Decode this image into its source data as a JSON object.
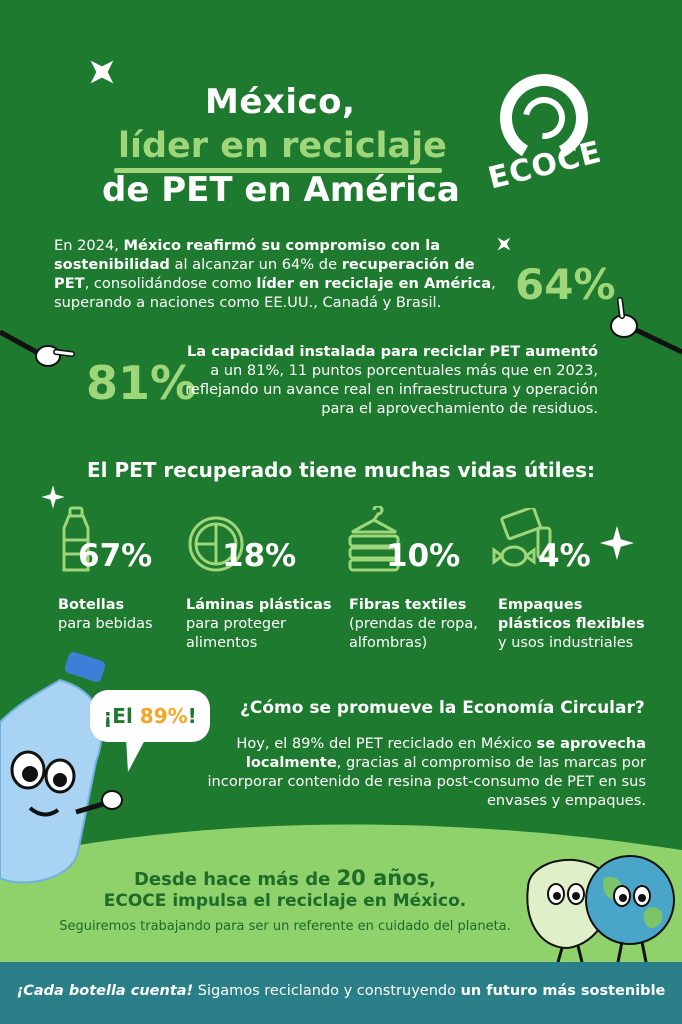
{
  "header": {
    "title_line1": "México,",
    "title_line2": "líder en reciclaje",
    "title_line3": "de PET en América",
    "logo_text": "ECOCE"
  },
  "intro": {
    "p1": "En 2024, ",
    "b1": "México reafirmó su compromiso con la sostenibilidad",
    "p2": " al alcanzar un 64% de ",
    "b2": "recuperación de PET",
    "p3": ", consolidándose como ",
    "b3": "líder en reciclaje en América",
    "p4": ", superando a naciones como EE.UU., Canadá y Brasil.",
    "stat": "64%"
  },
  "capacity": {
    "stat": "81%",
    "bold": "La capacidad instalada para reciclar PET aumentó",
    "text": "a un 81%, 11 puntos porcentuales más que en 2023, reflejando un avance real en infraestructura y operación para el aprovechamiento de residuos."
  },
  "uses": {
    "heading": "El PET recuperado tiene muchas vidas útiles:",
    "items": [
      {
        "stat": "67%",
        "bold": "Botellas",
        "text": "para bebidas"
      },
      {
        "stat": "18%",
        "bold": "Láminas plásticas",
        "text": "para proteger alimentos"
      },
      {
        "stat": "10%",
        "bold": "Fibras textiles",
        "text": "(prendas de ropa, alfombras)"
      },
      {
        "stat": "4%",
        "bold": "Empaques plásticos flexibles",
        "text": "y usos industriales"
      }
    ]
  },
  "circular": {
    "bubble_pre": "¡El ",
    "bubble_num": "89%",
    "bubble_post": "!",
    "question": "¿Cómo se promueve la Economía Circular?",
    "p1": "Hoy, el 89% del PET reciclado en México ",
    "b1": "se aprovecha localmente",
    "p2": ", gracias al compromiso de las marcas por incorporar contenido de resina post-consumo de PET en sus envases y empaques."
  },
  "closing": {
    "line1_pre": "Desde hace más de ",
    "line1_num": "20 años",
    "line1_post": ",",
    "line2": "ECOCE impulsa el reciclaje en México.",
    "line3": "Seguiremos trabajando para ser un referente en cuidado del planeta."
  },
  "footer": {
    "italic": "¡Cada botella cuenta!",
    "text": " Sigamos reciclando y construyendo ",
    "bold": "un futuro más sostenible"
  },
  "colors": {
    "background": "#1e7a2e",
    "accent": "#9fd67a",
    "footer": "#2a7f89",
    "bubble_accent": "#f5a623"
  }
}
